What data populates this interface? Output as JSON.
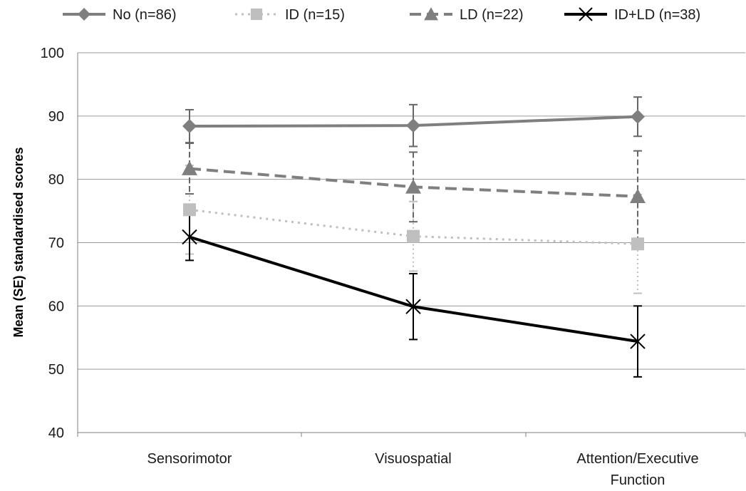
{
  "chart_data": {
    "type": "line",
    "ylabel": "Mean (SE) standardised scores",
    "xlabel": "",
    "ylim": [
      40,
      100
    ],
    "yticks": [
      40,
      50,
      60,
      70,
      80,
      90,
      100
    ],
    "categories": [
      [
        "Sensorimotor"
      ],
      [
        "Visuospatial"
      ],
      [
        "Attention/Executive",
        "Function"
      ]
    ],
    "grid": true,
    "legend_position": "top",
    "series": [
      {
        "name": "No (n=86)",
        "values": [
          88.4,
          88.5,
          89.9
        ],
        "errors": [
          2.6,
          3.3,
          3.1
        ],
        "color": "#7f7f7f",
        "style": "solid",
        "marker": "diamond",
        "line_width": 4
      },
      {
        "name": "ID (n=15)",
        "values": [
          75.2,
          71.0,
          69.8
        ],
        "errors": [
          7.0,
          5.5,
          7.8
        ],
        "color": "#bfbfbf",
        "style": "dotted",
        "marker": "square",
        "line_width": 3
      },
      {
        "name": "LD (n=22)",
        "values": [
          81.7,
          78.8,
          77.3
        ],
        "errors": [
          4.0,
          5.5,
          7.2
        ],
        "color": "#7f7f7f",
        "style": "dashed",
        "marker": "triangle",
        "line_width": 4
      },
      {
        "name": "ID+LD (n=38)",
        "values": [
          70.9,
          59.9,
          54.4
        ],
        "errors": [
          3.7,
          5.2,
          5.6
        ],
        "color": "#000000",
        "style": "solid",
        "marker": "x",
        "line_width": 4
      }
    ]
  }
}
